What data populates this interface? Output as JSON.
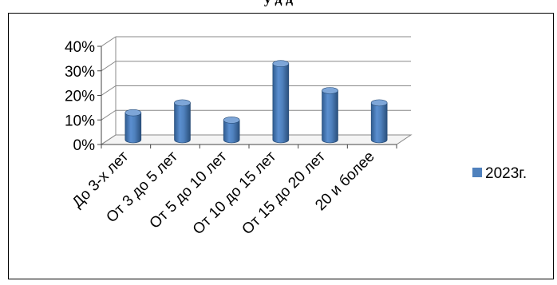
{
  "heading_fragment": "у                    д                                д",
  "chart_data": {
    "type": "bar",
    "style": "3d-cylinder",
    "categories": [
      "До 3-х лет",
      "От 3 до 5 лет",
      "От 5 до 10 лет",
      "От 10 до 15 лет",
      "От 15 до 20 лет",
      "20 и более"
    ],
    "series": [
      {
        "name": "2023г.",
        "values": [
          11,
          15,
          8,
          31,
          20,
          15
        ],
        "color": "#4f81bd"
      }
    ],
    "y_ticks": [
      "0%",
      "10%",
      "20%",
      "30%",
      "40%"
    ],
    "ylim": [
      0,
      40
    ],
    "y_unit": "%",
    "grid": true,
    "legend_position": "right"
  }
}
